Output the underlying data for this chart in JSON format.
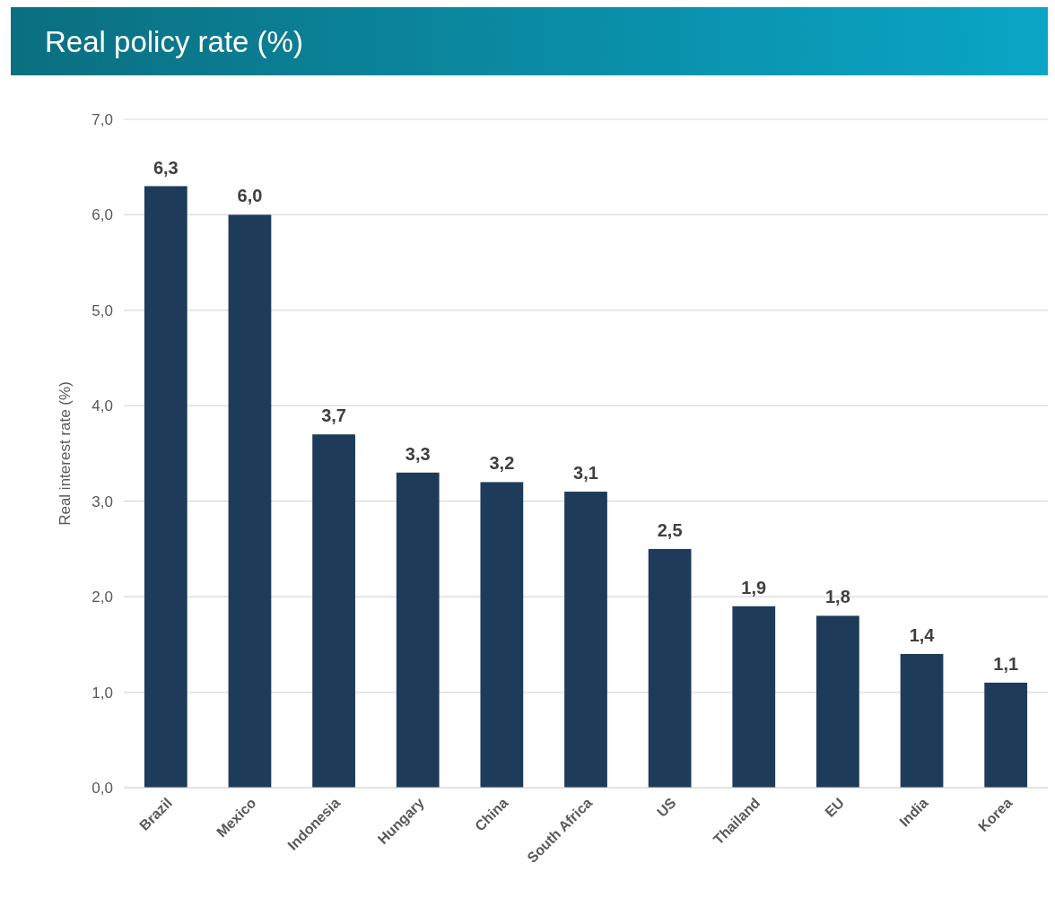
{
  "chart_data": {
    "type": "bar",
    "title": "Real policy rate (%)",
    "ylabel": "Real interest rate (%)",
    "categories": [
      "Brazil",
      "Mexico",
      "Indonesia",
      "Hungary",
      "China",
      "South Africa",
      "US",
      "Thailand",
      "EU",
      "India",
      "Korea"
    ],
    "values": [
      6.3,
      6.0,
      3.7,
      3.3,
      3.2,
      3.1,
      2.5,
      1.9,
      1.8,
      1.4,
      1.1
    ],
    "value_labels": [
      "6,3",
      "6,0",
      "3,7",
      "3,3",
      "3,2",
      "3,1",
      "2,5",
      "1,9",
      "1,8",
      "1,4",
      "1,1"
    ],
    "color": "#1f3b5a",
    "ylim": [
      0,
      7
    ],
    "yticks": [
      {
        "value": 0,
        "label": "0,0"
      },
      {
        "value": 1,
        "label": "1,0"
      },
      {
        "value": 2,
        "label": "2,0"
      },
      {
        "value": 3,
        "label": "3,0"
      },
      {
        "value": 4,
        "label": "4,0"
      },
      {
        "value": 5,
        "label": "5,0"
      },
      {
        "value": 6,
        "label": "6,0"
      },
      {
        "value": 7,
        "label": "7,0"
      }
    ],
    "grid": "y"
  }
}
